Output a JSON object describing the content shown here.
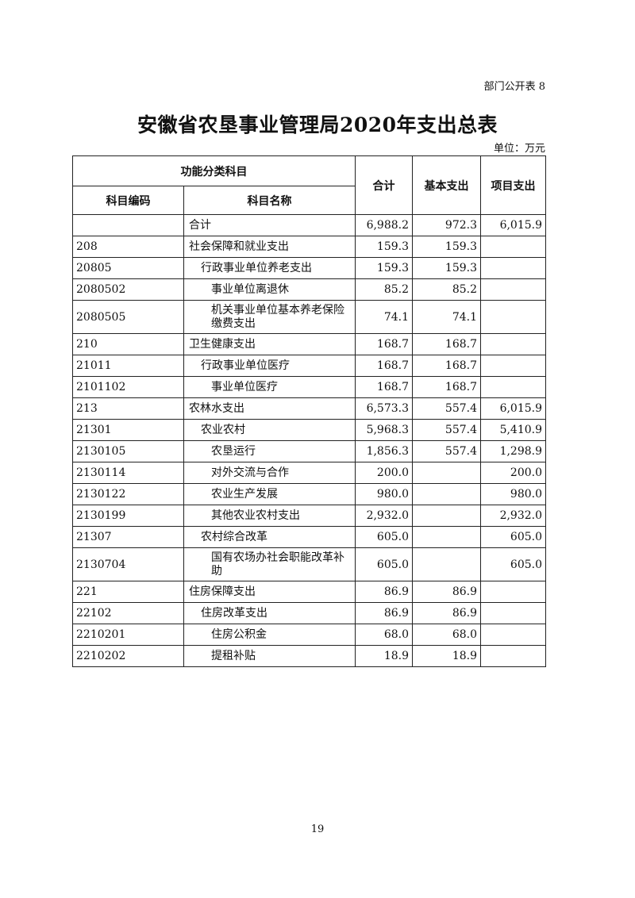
{
  "doc_tag": "部门公开表 8",
  "title": "安徽省农垦事业管理局2020年支出总表",
  "unit": "单位：万元",
  "headers": {
    "group": "功能分类科目",
    "code": "科目编码",
    "name": "科目名称",
    "total": "合计",
    "basic": "基本支出",
    "project": "项目支出"
  },
  "rows": [
    {
      "code": "",
      "name": "合计",
      "level": 0,
      "total": "6,988.2",
      "basic": "972.3",
      "project": "6,015.9"
    },
    {
      "code": "208",
      "name": "社会保障和就业支出",
      "level": 0,
      "total": "159.3",
      "basic": "159.3",
      "project": ""
    },
    {
      "code": "20805",
      "name": "行政事业单位养老支出",
      "level": 1,
      "total": "159.3",
      "basic": "159.3",
      "project": ""
    },
    {
      "code": "2080502",
      "name": "事业单位离退休",
      "level": 2,
      "total": "85.2",
      "basic": "85.2",
      "project": ""
    },
    {
      "code": "2080505",
      "name": "机关事业单位基本养老保险缴费支出",
      "level": 2,
      "total": "74.1",
      "basic": "74.1",
      "project": ""
    },
    {
      "code": "210",
      "name": "卫生健康支出",
      "level": 0,
      "total": "168.7",
      "basic": "168.7",
      "project": ""
    },
    {
      "code": "21011",
      "name": "行政事业单位医疗",
      "level": 1,
      "total": "168.7",
      "basic": "168.7",
      "project": ""
    },
    {
      "code": "2101102",
      "name": "事业单位医疗",
      "level": 2,
      "total": "168.7",
      "basic": "168.7",
      "project": ""
    },
    {
      "code": "213",
      "name": "农林水支出",
      "level": 0,
      "total": "6,573.3",
      "basic": "557.4",
      "project": "6,015.9"
    },
    {
      "code": "21301",
      "name": "农业农村",
      "level": 1,
      "total": "5,968.3",
      "basic": "557.4",
      "project": "5,410.9"
    },
    {
      "code": "2130105",
      "name": "农垦运行",
      "level": 2,
      "total": "1,856.3",
      "basic": "557.4",
      "project": "1,298.9"
    },
    {
      "code": "2130114",
      "name": "对外交流与合作",
      "level": 2,
      "total": "200.0",
      "basic": "",
      "project": "200.0"
    },
    {
      "code": "2130122",
      "name": "农业生产发展",
      "level": 2,
      "total": "980.0",
      "basic": "",
      "project": "980.0"
    },
    {
      "code": "2130199",
      "name": "其他农业农村支出",
      "level": 2,
      "total": "2,932.0",
      "basic": "",
      "project": "2,932.0"
    },
    {
      "code": "21307",
      "name": "农村综合改革",
      "level": 1,
      "total": "605.0",
      "basic": "",
      "project": "605.0"
    },
    {
      "code": "2130704",
      "name": "国有农场办社会职能改革补助",
      "level": 2,
      "total": "605.0",
      "basic": "",
      "project": "605.0"
    },
    {
      "code": "221",
      "name": "住房保障支出",
      "level": 0,
      "total": "86.9",
      "basic": "86.9",
      "project": ""
    },
    {
      "code": "22102",
      "name": "住房改革支出",
      "level": 1,
      "total": "86.9",
      "basic": "86.9",
      "project": ""
    },
    {
      "code": "2210201",
      "name": "住房公积金",
      "level": 2,
      "total": "68.0",
      "basic": "68.0",
      "project": ""
    },
    {
      "code": "2210202",
      "name": "提租补贴",
      "level": 2,
      "total": "18.9",
      "basic": "18.9",
      "project": ""
    }
  ],
  "page_number": "19"
}
